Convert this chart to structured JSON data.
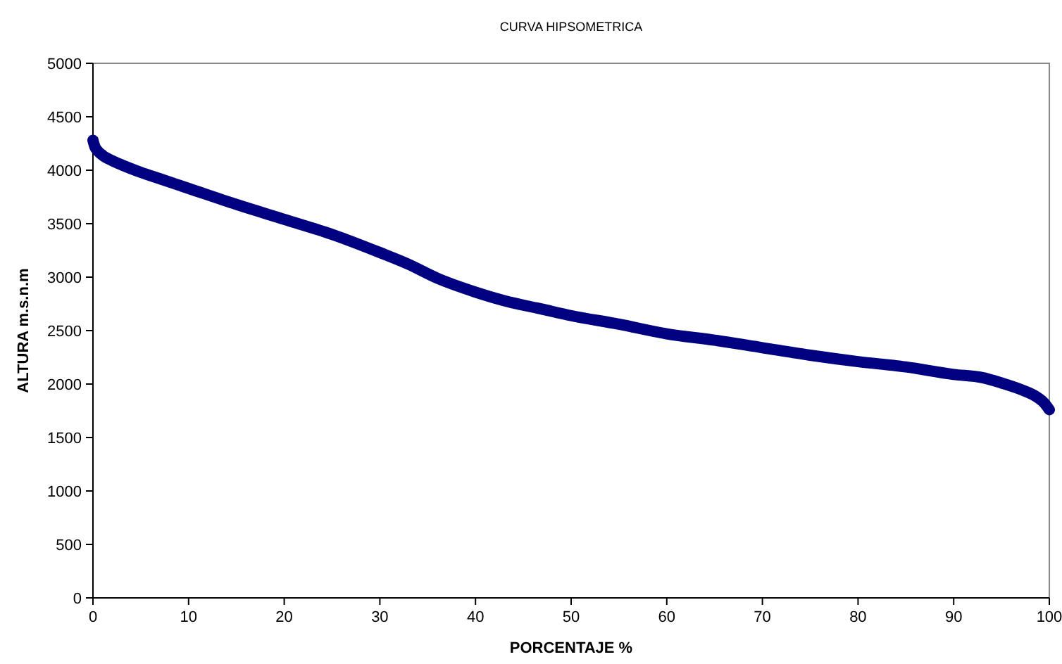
{
  "chart_data": {
    "type": "line",
    "title": "CURVA HIPSOMETRICA",
    "xlabel": "PORCENTAJE %",
    "ylabel": "ALTURA m.s.n.m",
    "series": [
      {
        "color": "#000080",
        "x": [
          0,
          0.2,
          0.5,
          1,
          2,
          3,
          5,
          7,
          10,
          15,
          20,
          25,
          30,
          33,
          36,
          40,
          43,
          47,
          50,
          55,
          60,
          65,
          70,
          75,
          80,
          85,
          90,
          93,
          95,
          97,
          98.5,
          99.5,
          100
        ],
        "values": [
          4280,
          4220,
          4180,
          4140,
          4090,
          4050,
          3980,
          3920,
          3830,
          3680,
          3540,
          3400,
          3230,
          3120,
          2990,
          2860,
          2780,
          2700,
          2640,
          2560,
          2470,
          2410,
          2340,
          2270,
          2210,
          2160,
          2090,
          2060,
          2010,
          1950,
          1890,
          1820,
          1760
        ]
      }
    ],
    "xlim": [
      0,
      100
    ],
    "xticks": [
      0,
      10,
      20,
      30,
      40,
      50,
      60,
      70,
      80,
      90,
      100
    ],
    "ylim": [
      0,
      5000
    ],
    "yticks": [
      0,
      500,
      1000,
      1500,
      2000,
      2500,
      3000,
      3500,
      4000,
      4500,
      5000
    ],
    "grid": false,
    "line_style": "solid"
  }
}
